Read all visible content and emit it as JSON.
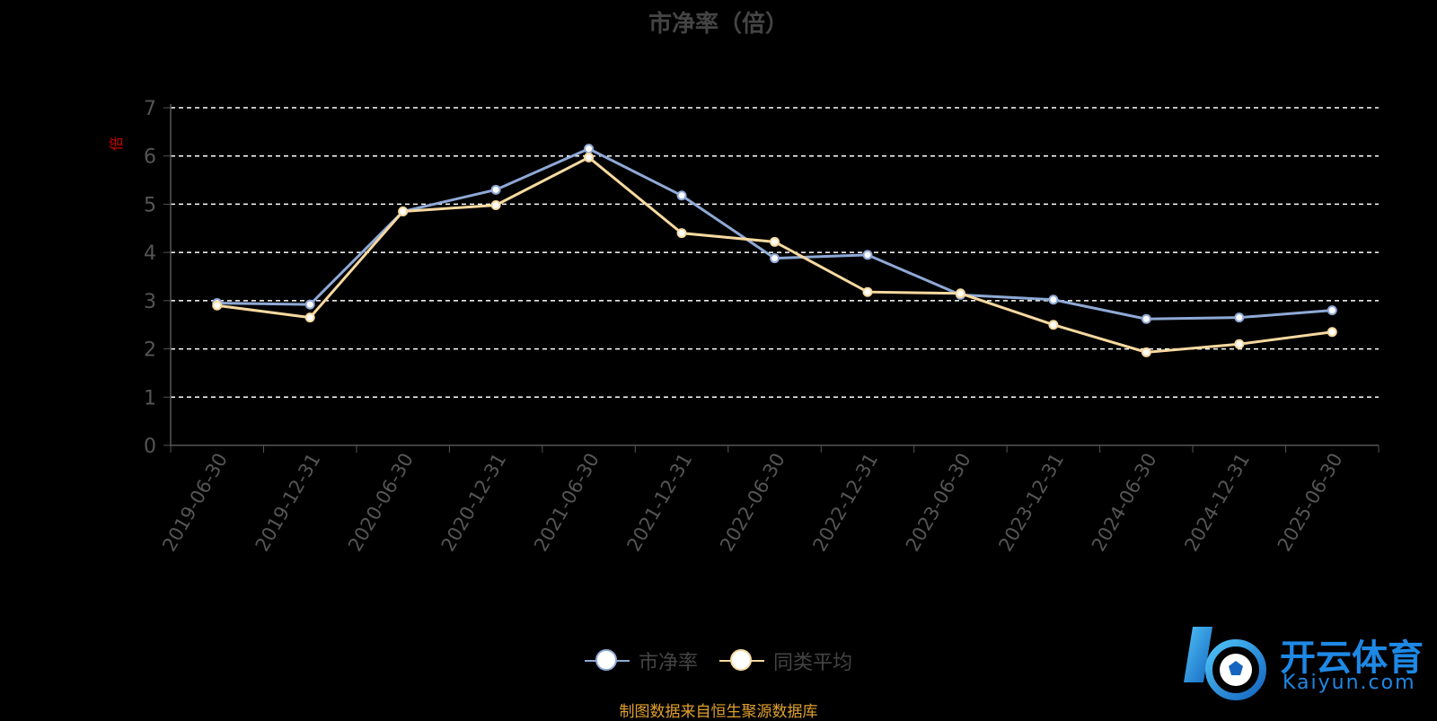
{
  "chart_data": {
    "type": "line",
    "title": "市净率（倍）",
    "ylabel": "倍",
    "ylim": [
      0,
      7
    ],
    "yticks": [
      0,
      1,
      2,
      3,
      4,
      5,
      6,
      7
    ],
    "grid": true,
    "legend_position": "bottom",
    "categories": [
      "2019-06-30",
      "2019-12-31",
      "2020-06-30",
      "2020-12-31",
      "2021-06-30",
      "2021-12-31",
      "2022-06-30",
      "2022-12-31",
      "2023-06-30",
      "2023-12-31",
      "2024-06-30",
      "2024-12-31",
      "2025-06-30"
    ],
    "series": [
      {
        "name": "市净率",
        "color": "#8fa9d6",
        "values": [
          2.95,
          2.92,
          4.85,
          5.3,
          6.15,
          5.18,
          3.88,
          3.95,
          3.12,
          3.02,
          2.62,
          2.65,
          2.8
        ]
      },
      {
        "name": "同类平均",
        "color": "#f7d9a0",
        "values": [
          2.9,
          2.65,
          4.85,
          4.98,
          5.97,
          4.4,
          4.22,
          3.18,
          3.15,
          2.5,
          1.93,
          2.1,
          2.35
        ]
      }
    ]
  },
  "source_note": "制图数据来自恒生聚源数据库",
  "logo": {
    "brand": "开云体育",
    "site": "Kaiyun.com",
    "color": "#1e88e5"
  }
}
